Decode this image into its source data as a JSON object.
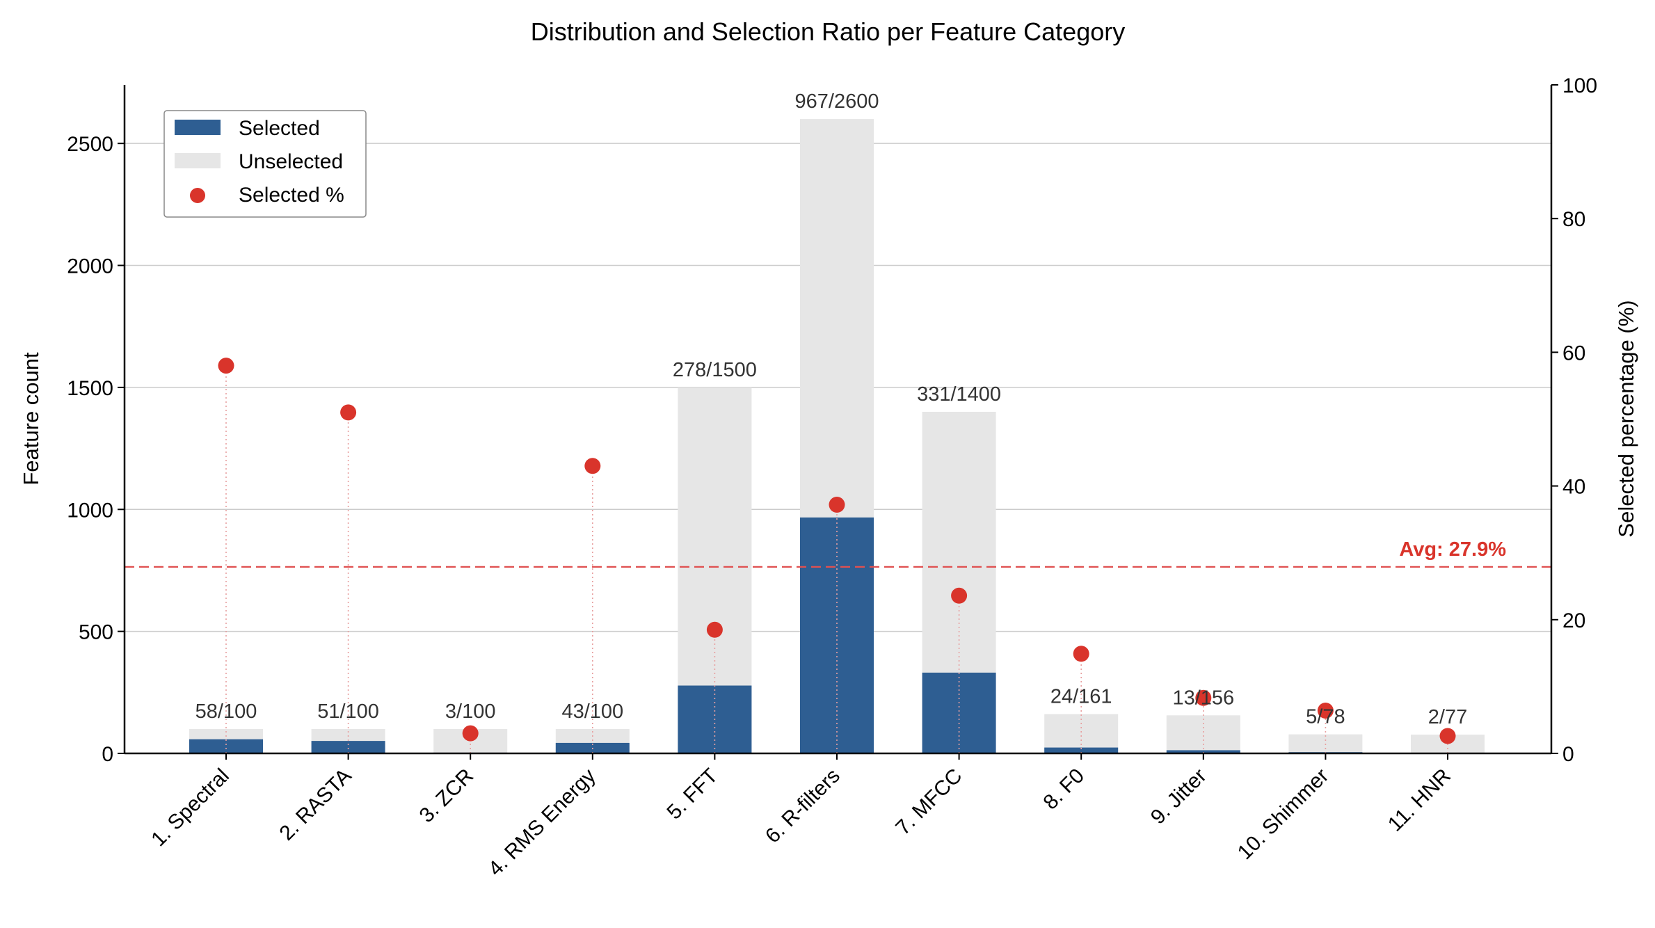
{
  "colors": {
    "selected": "#2e5e92",
    "unselected": "#e6e6e6",
    "percent": "#d9342b",
    "grid": "#cccccc",
    "avg_line": "#e05050"
  },
  "chart_data": {
    "type": "bar",
    "title": "Distribution and Selection Ratio per Feature Category",
    "xlabel": "",
    "ylabel": "Feature count",
    "y2label": "Selected percentage (%)",
    "ylim": [
      0,
      2740
    ],
    "y2lim": [
      0,
      100
    ],
    "yticks": [
      0,
      500,
      1000,
      1500,
      2000,
      2500
    ],
    "y2ticks": [
      0,
      20,
      40,
      60,
      80,
      100
    ],
    "grid": true,
    "legend_position": "top-left",
    "categories": [
      "1. Spectral",
      "2. RASTA",
      "3. ZCR",
      "4. RMS Energy",
      "5. FFT",
      "6. R-filters",
      "7. MFCC",
      "8. F0",
      "9. Jitter",
      "10. Shimmer",
      "11. HNR"
    ],
    "series": [
      {
        "name": "Selected",
        "type": "bar",
        "axis": "left",
        "values": [
          58,
          51,
          3,
          43,
          278,
          967,
          331,
          24,
          13,
          5,
          2
        ]
      },
      {
        "name": "Unselected",
        "type": "bar",
        "axis": "left",
        "values": [
          42,
          49,
          97,
          57,
          1222,
          1633,
          1069,
          137,
          143,
          73,
          75
        ]
      },
      {
        "name": "Selected %",
        "type": "scatter",
        "axis": "right",
        "values": [
          58.0,
          51.0,
          3.0,
          43.0,
          18.5,
          37.2,
          23.6,
          14.9,
          8.3,
          6.4,
          2.6
        ]
      }
    ],
    "totals": [
      100,
      100,
      100,
      100,
      1500,
      2600,
      1400,
      161,
      156,
      78,
      77
    ],
    "bar_labels": [
      "58/100",
      "51/100",
      "3/100",
      "43/100",
      "278/1500",
      "967/2600",
      "331/1400",
      "24/161",
      "13/156",
      "5/78",
      "2/77"
    ],
    "average_percent": 27.9,
    "average_label": "Avg: 27.9%",
    "legend": [
      "Selected",
      "Unselected",
      "Selected %"
    ]
  }
}
